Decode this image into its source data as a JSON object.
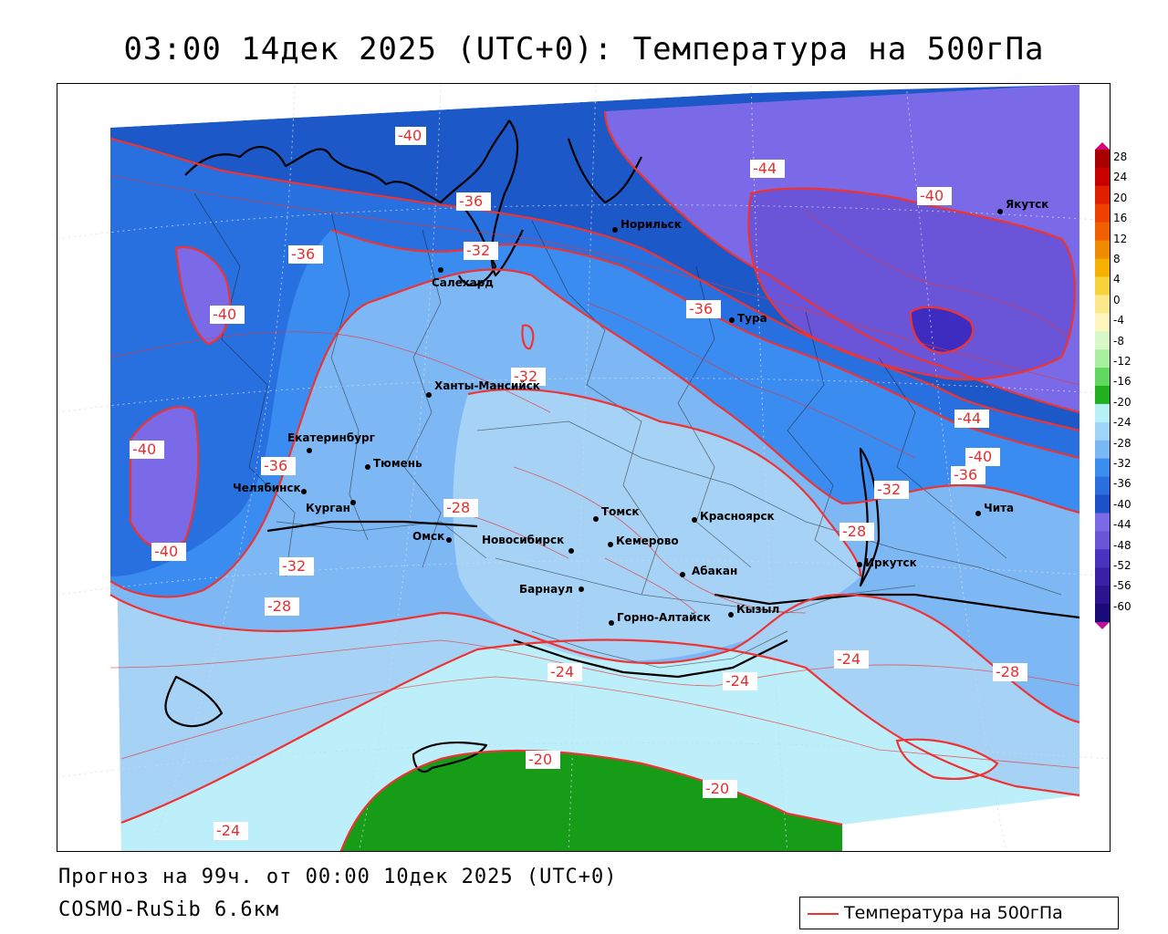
{
  "title": "03:00 14дек 2025 (UTC+0): Температура на 500гПа",
  "forecast_line": "Прогноз на 99ч. от 00:00 10дек 2025 (UTC+0)",
  "model_line": "COSMO-RuSib 6.6км",
  "legend": {
    "label": "Температура на 500гПа",
    "color": "#ee3333"
  },
  "colorbar": {
    "ticks": [
      "28",
      "24",
      "20",
      "16",
      "12",
      "8",
      "4",
      "0",
      "-4",
      "-8",
      "-12",
      "-16",
      "-20",
      "-24",
      "-28",
      "-32",
      "-36",
      "-40",
      "-44",
      "-48",
      "-52",
      "-56",
      "-60"
    ],
    "colors": [
      "#d6007a",
      "#a80000",
      "#c80000",
      "#e02000",
      "#f04000",
      "#f06000",
      "#f08a00",
      "#f5b000",
      "#f7d23a",
      "#fae88a",
      "#fff6c0",
      "#d8f8c8",
      "#a8f0a0",
      "#60d860",
      "#20b020",
      "#b8f0f8",
      "#a0d4f8",
      "#7ab8f4",
      "#3a8ef0",
      "#2a6ee0",
      "#1c50c8",
      "#7a6ae8",
      "#6a54d8",
      "#4a32c0",
      "#3a20a8",
      "#2a1490",
      "#1a0a78",
      "#c0109a"
    ]
  },
  "isotherm_labels": [
    {
      "text": "-40"
    },
    {
      "text": "-44"
    },
    {
      "text": "-40"
    },
    {
      "text": "-36"
    },
    {
      "text": "-36"
    },
    {
      "text": "-32"
    },
    {
      "text": "-40"
    },
    {
      "text": "-36"
    },
    {
      "text": "-32"
    },
    {
      "text": "-40"
    },
    {
      "text": "-36"
    },
    {
      "text": "-28"
    },
    {
      "text": "-44"
    },
    {
      "text": "-40"
    },
    {
      "text": "-36"
    },
    {
      "text": "-32"
    },
    {
      "text": "-40"
    },
    {
      "text": "-32"
    },
    {
      "text": "-28"
    },
    {
      "text": "-28"
    },
    {
      "text": "-24"
    },
    {
      "text": "-24"
    },
    {
      "text": "-24"
    },
    {
      "text": "-28"
    },
    {
      "text": "-20"
    },
    {
      "text": "-20"
    },
    {
      "text": "-24"
    }
  ],
  "cities": [
    {
      "name": "Якутск"
    },
    {
      "name": "Норильск"
    },
    {
      "name": "Салехард"
    },
    {
      "name": "Тура"
    },
    {
      "name": "Ханты-Мансийск"
    },
    {
      "name": "Екатеринбург"
    },
    {
      "name": "Тюмень"
    },
    {
      "name": "Челябинск"
    },
    {
      "name": "Курган"
    },
    {
      "name": "Томск"
    },
    {
      "name": "Красноярск"
    },
    {
      "name": "Омск"
    },
    {
      "name": "Новосибирск"
    },
    {
      "name": "Кемерово"
    },
    {
      "name": "Барнаул"
    },
    {
      "name": "Абакан"
    },
    {
      "name": "Иркутск"
    },
    {
      "name": "Чита"
    },
    {
      "name": "Кызыл"
    },
    {
      "name": "Горно-Алтайск"
    }
  ]
}
